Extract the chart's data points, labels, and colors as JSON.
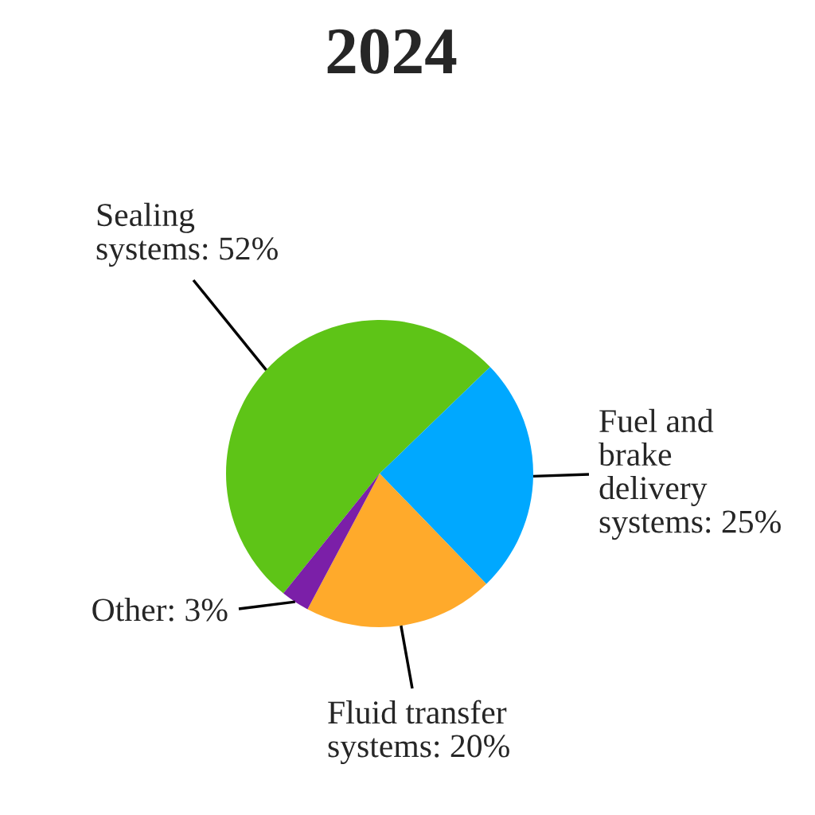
{
  "chart_data": {
    "type": "pie",
    "title": "2024",
    "categories": [
      "Sealing\nsystems",
      "Fuel and\nbrake\ndelivery\nsystems",
      "Fluid transfer\nsystems",
      "Other"
    ],
    "values": [
      52,
      25,
      20,
      3
    ],
    "value_labels": [
      "52%",
      "25%",
      "20%",
      "3%"
    ],
    "colors": [
      "#5ec417",
      "#00a8ff",
      "#ffaa2b",
      "#7b1fa8"
    ]
  }
}
